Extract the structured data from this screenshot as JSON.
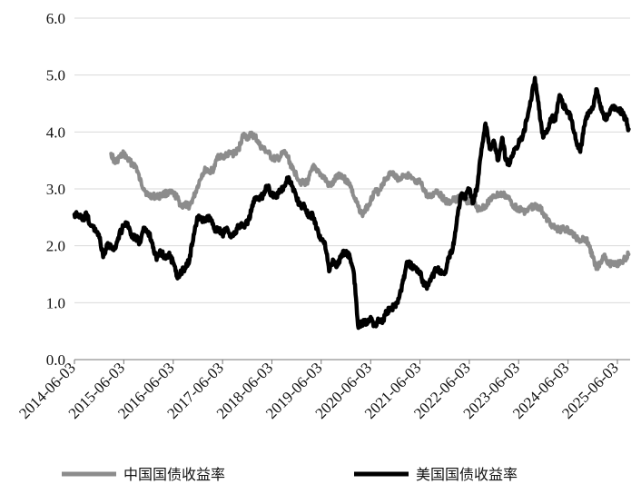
{
  "chart_data": {
    "type": "line",
    "title": "",
    "xlabel": "",
    "ylabel": "",
    "ylim": [
      0,
      6
    ],
    "yticks": [
      "0.0",
      "1.0",
      "2.0",
      "3.0",
      "4.0",
      "5.0",
      "6.0"
    ],
    "xticks": [
      "2014-06-03",
      "2015-06-03",
      "2016-06-03",
      "2017-06-03",
      "2018-06-03",
      "2019-06-03",
      "2020-06-03",
      "2021-06-03",
      "2022-06-03",
      "2023-06-03",
      "2024-06-03",
      "2025-06-03"
    ],
    "grid": "horizontal",
    "legend_position": "bottom",
    "series": [
      {
        "name": "中国国债收益率",
        "color": "#8c8c8c",
        "points": [
          [
            "2015-03-01",
            3.62
          ],
          [
            "2015-04-01",
            3.45
          ],
          [
            "2015-05-01",
            3.55
          ],
          [
            "2015-06-03",
            3.62
          ],
          [
            "2015-07-01",
            3.52
          ],
          [
            "2015-08-01",
            3.45
          ],
          [
            "2015-09-01",
            3.4
          ],
          [
            "2015-10-01",
            3.15
          ],
          [
            "2015-11-01",
            3.0
          ],
          [
            "2015-12-01",
            2.88
          ],
          [
            "2016-01-01",
            2.88
          ],
          [
            "2016-02-01",
            2.86
          ],
          [
            "2016-03-01",
            2.88
          ],
          [
            "2016-04-01",
            2.92
          ],
          [
            "2016-05-01",
            2.92
          ],
          [
            "2016-06-03",
            2.92
          ],
          [
            "2016-07-01",
            2.85
          ],
          [
            "2016-08-01",
            2.7
          ],
          [
            "2016-09-01",
            2.72
          ],
          [
            "2016-10-01",
            2.7
          ],
          [
            "2016-11-01",
            2.85
          ],
          [
            "2016-12-01",
            3.05
          ],
          [
            "2017-01-01",
            3.25
          ],
          [
            "2017-02-01",
            3.35
          ],
          [
            "2017-03-01",
            3.3
          ],
          [
            "2017-04-01",
            3.35
          ],
          [
            "2017-05-01",
            3.6
          ],
          [
            "2017-06-03",
            3.55
          ],
          [
            "2017-07-01",
            3.6
          ],
          [
            "2017-08-01",
            3.62
          ],
          [
            "2017-09-01",
            3.62
          ],
          [
            "2017-10-01",
            3.7
          ],
          [
            "2017-11-01",
            3.95
          ],
          [
            "2017-12-01",
            3.9
          ],
          [
            "2018-01-01",
            3.95
          ],
          [
            "2018-02-01",
            3.92
          ],
          [
            "2018-03-01",
            3.78
          ],
          [
            "2018-04-01",
            3.7
          ],
          [
            "2018-05-01",
            3.65
          ],
          [
            "2018-06-03",
            3.55
          ],
          [
            "2018-07-01",
            3.52
          ],
          [
            "2018-08-01",
            3.55
          ],
          [
            "2018-09-01",
            3.65
          ],
          [
            "2018-10-01",
            3.55
          ],
          [
            "2018-11-01",
            3.35
          ],
          [
            "2018-12-01",
            3.25
          ],
          [
            "2019-01-01",
            3.12
          ],
          [
            "2019-02-01",
            3.1
          ],
          [
            "2019-03-01",
            3.15
          ],
          [
            "2019-04-01",
            3.4
          ],
          [
            "2019-05-01",
            3.3
          ],
          [
            "2019-06-03",
            3.25
          ],
          [
            "2019-07-01",
            3.18
          ],
          [
            "2019-08-01",
            3.05
          ],
          [
            "2019-09-01",
            3.1
          ],
          [
            "2019-10-01",
            3.25
          ],
          [
            "2019-11-01",
            3.25
          ],
          [
            "2019-12-01",
            3.15
          ],
          [
            "2020-01-01",
            3.1
          ],
          [
            "2020-02-01",
            2.85
          ],
          [
            "2020-03-01",
            2.7
          ],
          [
            "2020-04-01",
            2.55
          ],
          [
            "2020-05-01",
            2.65
          ],
          [
            "2020-06-03",
            2.8
          ],
          [
            "2020-07-01",
            2.95
          ],
          [
            "2020-08-01",
            2.95
          ],
          [
            "2020-09-01",
            3.1
          ],
          [
            "2020-10-01",
            3.2
          ],
          [
            "2020-11-01",
            3.28
          ],
          [
            "2020-12-01",
            3.25
          ],
          [
            "2021-01-01",
            3.15
          ],
          [
            "2021-02-01",
            3.25
          ],
          [
            "2021-03-01",
            3.25
          ],
          [
            "2021-04-01",
            3.18
          ],
          [
            "2021-05-01",
            3.1
          ],
          [
            "2021-06-03",
            3.12
          ],
          [
            "2021-07-01",
            3.0
          ],
          [
            "2021-08-01",
            2.85
          ],
          [
            "2021-09-01",
            2.88
          ],
          [
            "2021-10-01",
            2.98
          ],
          [
            "2021-11-01",
            2.9
          ],
          [
            "2021-12-01",
            2.8
          ],
          [
            "2022-01-01",
            2.75
          ],
          [
            "2022-02-01",
            2.8
          ],
          [
            "2022-03-01",
            2.82
          ],
          [
            "2022-04-01",
            2.85
          ],
          [
            "2022-05-01",
            2.8
          ],
          [
            "2022-06-03",
            2.78
          ],
          [
            "2022-07-01",
            2.78
          ],
          [
            "2022-08-01",
            2.65
          ],
          [
            "2022-09-01",
            2.65
          ],
          [
            "2022-10-01",
            2.7
          ],
          [
            "2022-11-01",
            2.82
          ],
          [
            "2022-12-01",
            2.85
          ],
          [
            "2023-01-01",
            2.9
          ],
          [
            "2023-02-01",
            2.9
          ],
          [
            "2023-03-01",
            2.88
          ],
          [
            "2023-04-01",
            2.8
          ],
          [
            "2023-05-01",
            2.7
          ],
          [
            "2023-06-03",
            2.65
          ],
          [
            "2023-07-01",
            2.62
          ],
          [
            "2023-08-01",
            2.6
          ],
          [
            "2023-09-01",
            2.68
          ],
          [
            "2023-10-01",
            2.7
          ],
          [
            "2023-11-01",
            2.68
          ],
          [
            "2023-12-01",
            2.58
          ],
          [
            "2024-01-01",
            2.45
          ],
          [
            "2024-02-01",
            2.38
          ],
          [
            "2024-03-01",
            2.3
          ],
          [
            "2024-04-01",
            2.28
          ],
          [
            "2024-05-01",
            2.3
          ],
          [
            "2024-06-03",
            2.27
          ],
          [
            "2024-07-01",
            2.22
          ],
          [
            "2024-08-01",
            2.15
          ],
          [
            "2024-09-01",
            2.1
          ],
          [
            "2024-10-01",
            2.14
          ],
          [
            "2024-11-01",
            2.05
          ],
          [
            "2024-12-01",
            1.8
          ],
          [
            "2025-01-01",
            1.62
          ],
          [
            "2025-02-01",
            1.72
          ],
          [
            "2025-03-01",
            1.85
          ],
          [
            "2025-04-01",
            1.68
          ],
          [
            "2025-05-01",
            1.7
          ],
          [
            "2025-06-03",
            1.68
          ],
          [
            "2025-07-01",
            1.7
          ],
          [
            "2025-08-01",
            1.78
          ],
          [
            "2025-08-25",
            1.85
          ]
        ]
      },
      {
        "name": "美国国债收益率",
        "color": "#000000",
        "points": [
          [
            "2014-06-03",
            2.55
          ],
          [
            "2014-07-01",
            2.55
          ],
          [
            "2014-08-01",
            2.45
          ],
          [
            "2014-09-01",
            2.55
          ],
          [
            "2014-10-01",
            2.35
          ],
          [
            "2014-11-01",
            2.3
          ],
          [
            "2014-12-01",
            2.2
          ],
          [
            "2015-01-01",
            1.8
          ],
          [
            "2015-02-01",
            2.0
          ],
          [
            "2015-03-01",
            2.0
          ],
          [
            "2015-04-01",
            1.95
          ],
          [
            "2015-05-01",
            2.2
          ],
          [
            "2015-06-03",
            2.35
          ],
          [
            "2015-07-01",
            2.4
          ],
          [
            "2015-08-01",
            2.15
          ],
          [
            "2015-09-01",
            2.15
          ],
          [
            "2015-10-01",
            2.05
          ],
          [
            "2015-11-01",
            2.3
          ],
          [
            "2015-12-01",
            2.25
          ],
          [
            "2016-01-01",
            2.05
          ],
          [
            "2016-02-01",
            1.75
          ],
          [
            "2016-03-01",
            1.9
          ],
          [
            "2016-04-01",
            1.8
          ],
          [
            "2016-05-01",
            1.85
          ],
          [
            "2016-06-03",
            1.7
          ],
          [
            "2016-07-01",
            1.45
          ],
          [
            "2016-08-01",
            1.55
          ],
          [
            "2016-09-01",
            1.6
          ],
          [
            "2016-10-01",
            1.75
          ],
          [
            "2016-11-01",
            2.2
          ],
          [
            "2016-12-01",
            2.5
          ],
          [
            "2017-01-01",
            2.45
          ],
          [
            "2017-02-01",
            2.45
          ],
          [
            "2017-03-01",
            2.5
          ],
          [
            "2017-04-01",
            2.3
          ],
          [
            "2017-05-01",
            2.3
          ],
          [
            "2017-06-03",
            2.2
          ],
          [
            "2017-07-01",
            2.3
          ],
          [
            "2017-08-01",
            2.2
          ],
          [
            "2017-09-01",
            2.2
          ],
          [
            "2017-10-01",
            2.35
          ],
          [
            "2017-11-01",
            2.35
          ],
          [
            "2017-12-01",
            2.4
          ],
          [
            "2018-01-01",
            2.6
          ],
          [
            "2018-02-01",
            2.85
          ],
          [
            "2018-03-01",
            2.8
          ],
          [
            "2018-04-01",
            2.9
          ],
          [
            "2018-05-01",
            3.05
          ],
          [
            "2018-06-03",
            2.9
          ],
          [
            "2018-07-01",
            2.85
          ],
          [
            "2018-08-01",
            2.95
          ],
          [
            "2018-09-01",
            3.05
          ],
          [
            "2018-10-01",
            3.2
          ],
          [
            "2018-11-01",
            3.05
          ],
          [
            "2018-12-01",
            2.85
          ],
          [
            "2019-01-01",
            2.7
          ],
          [
            "2019-02-01",
            2.7
          ],
          [
            "2019-03-01",
            2.5
          ],
          [
            "2019-04-01",
            2.55
          ],
          [
            "2019-05-01",
            2.3
          ],
          [
            "2019-06-03",
            2.1
          ],
          [
            "2019-07-01",
            2.05
          ],
          [
            "2019-08-01",
            1.55
          ],
          [
            "2019-09-01",
            1.75
          ],
          [
            "2019-10-01",
            1.65
          ],
          [
            "2019-11-01",
            1.85
          ],
          [
            "2019-12-01",
            1.9
          ],
          [
            "2020-01-01",
            1.8
          ],
          [
            "2020-02-01",
            1.5
          ],
          [
            "2020-03-01",
            0.6
          ],
          [
            "2020-04-01",
            0.65
          ],
          [
            "2020-05-01",
            0.65
          ],
          [
            "2020-06-03",
            0.75
          ],
          [
            "2020-07-01",
            0.6
          ],
          [
            "2020-08-01",
            0.7
          ],
          [
            "2020-09-01",
            0.68
          ],
          [
            "2020-10-01",
            0.85
          ],
          [
            "2020-11-01",
            0.9
          ],
          [
            "2020-12-01",
            0.95
          ],
          [
            "2021-01-01",
            1.1
          ],
          [
            "2021-02-01",
            1.4
          ],
          [
            "2021-03-01",
            1.7
          ],
          [
            "2021-04-01",
            1.65
          ],
          [
            "2021-05-01",
            1.6
          ],
          [
            "2021-06-03",
            1.55
          ],
          [
            "2021-07-01",
            1.3
          ],
          [
            "2021-08-01",
            1.3
          ],
          [
            "2021-09-01",
            1.45
          ],
          [
            "2021-10-01",
            1.6
          ],
          [
            "2021-11-01",
            1.55
          ],
          [
            "2021-12-01",
            1.5
          ],
          [
            "2022-01-01",
            1.8
          ],
          [
            "2022-02-01",
            1.95
          ],
          [
            "2022-03-01",
            2.4
          ],
          [
            "2022-04-01",
            2.9
          ],
          [
            "2022-05-01",
            2.85
          ],
          [
            "2022-06-03",
            3.0
          ],
          [
            "2022-07-01",
            2.75
          ],
          [
            "2022-08-01",
            3.05
          ],
          [
            "2022-09-01",
            3.7
          ],
          [
            "2022-10-01",
            4.15
          ],
          [
            "2022-11-01",
            3.7
          ],
          [
            "2022-12-01",
            3.85
          ],
          [
            "2023-01-01",
            3.5
          ],
          [
            "2023-02-01",
            3.9
          ],
          [
            "2023-03-01",
            3.5
          ],
          [
            "2023-04-01",
            3.45
          ],
          [
            "2023-05-01",
            3.7
          ],
          [
            "2023-06-03",
            3.8
          ],
          [
            "2023-07-01",
            3.9
          ],
          [
            "2023-08-01",
            4.2
          ],
          [
            "2023-09-01",
            4.55
          ],
          [
            "2023-10-01",
            4.95
          ],
          [
            "2023-11-01",
            4.4
          ],
          [
            "2023-12-01",
            3.9
          ],
          [
            "2024-01-01",
            4.05
          ],
          [
            "2024-02-01",
            4.25
          ],
          [
            "2024-03-01",
            4.2
          ],
          [
            "2024-04-01",
            4.65
          ],
          [
            "2024-05-01",
            4.45
          ],
          [
            "2024-06-03",
            4.35
          ],
          [
            "2024-07-01",
            4.2
          ],
          [
            "2024-08-01",
            3.85
          ],
          [
            "2024-09-01",
            3.65
          ],
          [
            "2024-10-01",
            4.1
          ],
          [
            "2024-11-01",
            4.35
          ],
          [
            "2024-12-01",
            4.4
          ],
          [
            "2025-01-01",
            4.75
          ],
          [
            "2025-02-01",
            4.4
          ],
          [
            "2025-03-01",
            4.25
          ],
          [
            "2025-04-01",
            4.3
          ],
          [
            "2025-05-01",
            4.45
          ],
          [
            "2025-06-03",
            4.4
          ],
          [
            "2025-07-01",
            4.35
          ],
          [
            "2025-08-01",
            4.25
          ],
          [
            "2025-08-25",
            4.05
          ]
        ]
      }
    ]
  }
}
